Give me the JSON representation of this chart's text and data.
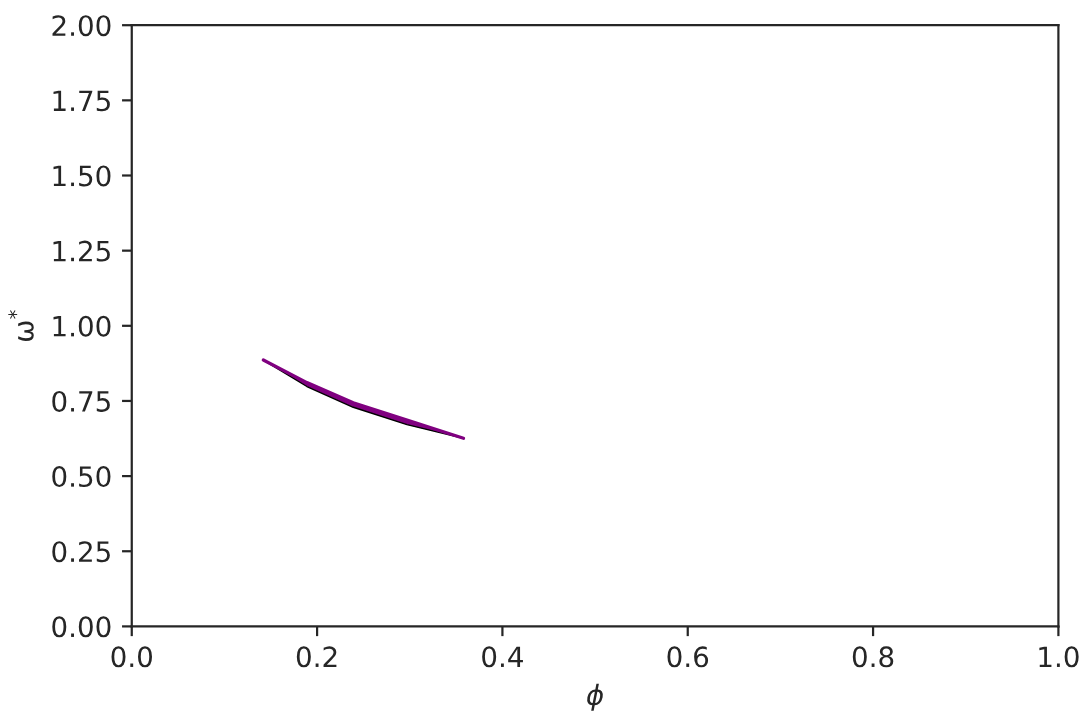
{
  "chart_data": {
    "type": "line",
    "xlabel": "ϕ",
    "ylabel": "ω$^{*}$",
    "x": [
      0.142,
      0.189,
      0.239,
      0.297,
      0.358
    ],
    "series": [
      {
        "color": "#800080",
        "values": [
          0.886,
          0.811,
          0.744,
          0.686,
          0.626
        ],
        "lower": [
          0.886,
          0.798,
          0.729,
          0.671,
          0.626
        ],
        "upper": [
          0.886,
          0.811,
          0.744,
          0.686,
          0.626
        ]
      }
    ],
    "xlim": [
      0,
      1
    ],
    "ylim": [
      0,
      2
    ],
    "xticks": [
      {
        "value": 0,
        "label": "0.0"
      },
      {
        "value": 0.2,
        "label": "0.2"
      },
      {
        "value": 0.4,
        "label": "0.4"
      },
      {
        "value": 0.6,
        "label": "0.6"
      },
      {
        "value": 0.8,
        "label": "0.8"
      },
      {
        "value": 1,
        "label": "1.0"
      }
    ],
    "yticks": [
      {
        "value": 0,
        "label": "0.00"
      },
      {
        "value": 0.25,
        "label": "0.25"
      },
      {
        "value": 0.5,
        "label": "0.50"
      },
      {
        "value": 0.75,
        "label": "0.75"
      },
      {
        "value": 1,
        "label": "1.00"
      },
      {
        "value": 1.25,
        "label": "1.25"
      },
      {
        "value": 1.5,
        "label": "1.50"
      },
      {
        "value": 1.75,
        "label": "1.75"
      },
      {
        "value": 2,
        "label": "2.00"
      }
    ],
    "grid": false,
    "legend": false
  }
}
